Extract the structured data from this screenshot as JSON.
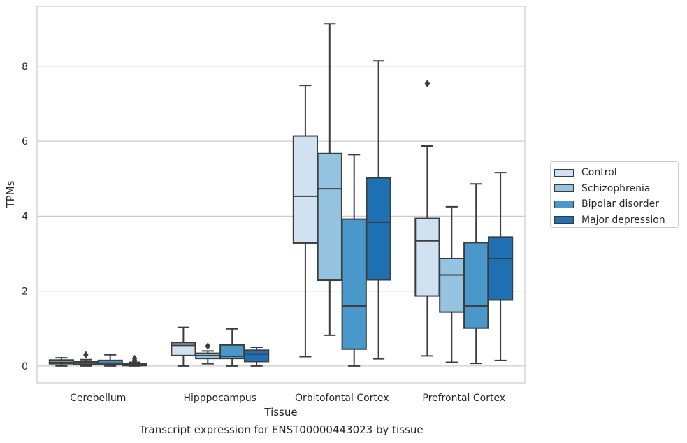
{
  "chart_data": {
    "type": "box",
    "caption": "Transcript expression for ENST00000443023 by tissue",
    "xlabel": "Tissue",
    "ylabel": "TPMs",
    "ylim": [
      -0.45,
      9.6
    ],
    "yticks": [
      0,
      2,
      4,
      6,
      8
    ],
    "grid": "horizontal",
    "legend_position": "right",
    "categories": [
      "Cerebellum",
      "Hipppocampus",
      "Orbitofontal Cortex",
      "Prefrontal Cortex"
    ],
    "series": [
      {
        "name": "Control",
        "color": "#d0e1f2",
        "boxes": [
          {
            "whisker_low": 0.0,
            "q1": 0.06,
            "median": 0.1,
            "q3": 0.16,
            "whisker_high": 0.22,
            "outliers": []
          },
          {
            "whisker_low": 0.0,
            "q1": 0.28,
            "median": 0.55,
            "q3": 0.62,
            "whisker_high": 1.03,
            "outliers": []
          },
          {
            "whisker_low": 0.25,
            "q1": 3.28,
            "median": 4.53,
            "q3": 6.14,
            "whisker_high": 7.49,
            "outliers": []
          },
          {
            "whisker_low": 0.27,
            "q1": 1.87,
            "median": 3.34,
            "q3": 3.94,
            "whisker_high": 5.87,
            "outliers": [
              7.54
            ]
          }
        ]
      },
      {
        "name": "Schizophrenia",
        "color": "#94c4df",
        "boxes": [
          {
            "whisker_low": 0.0,
            "q1": 0.05,
            "median": 0.09,
            "q3": 0.12,
            "whisker_high": 0.17,
            "outliers": [
              0.3
            ]
          },
          {
            "whisker_low": 0.06,
            "q1": 0.2,
            "median": 0.28,
            "q3": 0.34,
            "whisker_high": 0.4,
            "outliers": [
              0.53
            ]
          },
          {
            "whisker_low": 0.82,
            "q1": 2.29,
            "median": 4.73,
            "q3": 5.67,
            "whisker_high": 9.13,
            "outliers": []
          },
          {
            "whisker_low": 0.1,
            "q1": 1.44,
            "median": 2.43,
            "q3": 2.87,
            "whisker_high": 4.25,
            "outliers": []
          }
        ]
      },
      {
        "name": "Bipolar disorder",
        "color": "#4a98c9",
        "boxes": [
          {
            "whisker_low": 0.0,
            "q1": 0.04,
            "median": 0.08,
            "q3": 0.15,
            "whisker_high": 0.3,
            "outliers": []
          },
          {
            "whisker_low": 0.0,
            "q1": 0.2,
            "median": 0.26,
            "q3": 0.56,
            "whisker_high": 0.99,
            "outliers": []
          },
          {
            "whisker_low": 0.0,
            "q1": 0.45,
            "median": 1.6,
            "q3": 3.92,
            "whisker_high": 5.64,
            "outliers": []
          },
          {
            "whisker_low": 0.07,
            "q1": 1.01,
            "median": 1.6,
            "q3": 3.29,
            "whisker_high": 4.86,
            "outliers": []
          }
        ]
      },
      {
        "name": "Major depression",
        "color": "#2070b4",
        "boxes": [
          {
            "whisker_low": 0.0,
            "q1": 0.01,
            "median": 0.04,
            "q3": 0.06,
            "whisker_high": 0.1,
            "outliers": [
              0.1,
              0.15,
              0.2
            ]
          },
          {
            "whisker_low": 0.0,
            "q1": 0.12,
            "median": 0.32,
            "q3": 0.42,
            "whisker_high": 0.5,
            "outliers": []
          },
          {
            "whisker_low": 0.19,
            "q1": 2.3,
            "median": 3.84,
            "q3": 5.02,
            "whisker_high": 8.14,
            "outliers": []
          },
          {
            "whisker_low": 0.15,
            "q1": 1.76,
            "median": 2.87,
            "q3": 3.44,
            "whisker_high": 5.16,
            "outliers": []
          }
        ]
      }
    ]
  }
}
